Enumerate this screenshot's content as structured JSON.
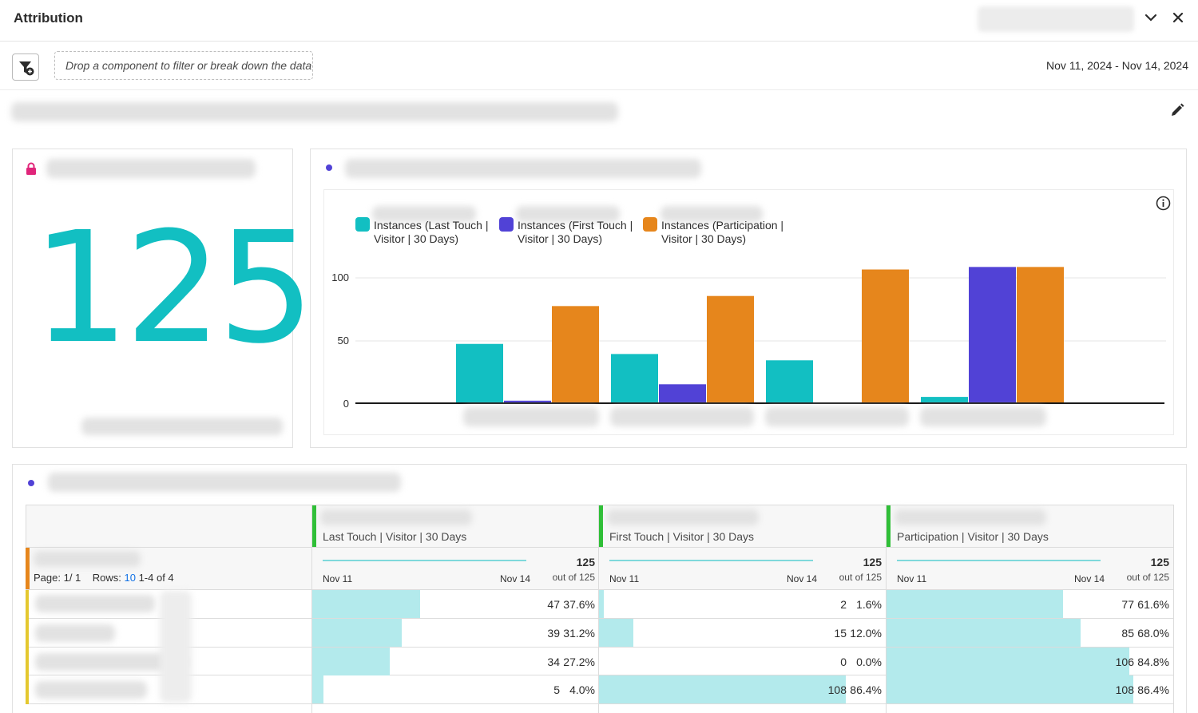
{
  "header": {
    "title": "Attribution"
  },
  "filterbar": {
    "drop_placeholder": "Drop a component to filter or break down the data",
    "date_range": "Nov 11, 2024 - Nov 14, 2024"
  },
  "summary": {
    "value": "125"
  },
  "chart_data": {
    "type": "bar",
    "series": [
      {
        "name": "Instances (Last Touch | Visitor | 30 Days)",
        "values": [
          47,
          39,
          34,
          5
        ],
        "color": "#12bfc2"
      },
      {
        "name": "Instances (First Touch | Visitor | 30 Days)",
        "values": [
          2,
          15,
          0,
          108
        ],
        "color": "#5142d6"
      },
      {
        "name": "Instances (Participation | Visitor | 30 Days)",
        "values": [
          77,
          85,
          106,
          108
        ],
        "color": "#e6861c"
      }
    ],
    "legend_lines": [
      [
        "Instances (Last Touch |",
        "Visitor | 30 Days)"
      ],
      [
        "Instances (First Touch |",
        "Visitor | 30 Days)"
      ],
      [
        "Instances (Participation |",
        "Visitor | 30 Days)"
      ]
    ],
    "yticks": [
      "100",
      "50",
      "0"
    ],
    "ylim": [
      0,
      100
    ],
    "grid": true,
    "legend_placement": "top-left"
  },
  "table": {
    "page_label": "Page: 1/ 1",
    "rows_label": "Rows:",
    "rows_value": "10",
    "range_label": "1-4 of 4",
    "columns": [
      {
        "title": "Last Touch | Visitor | 30 Days",
        "date_start": "Nov 11",
        "date_end": "Nov 14",
        "total": "125",
        "out_of": "out of 125"
      },
      {
        "title": "First Touch | Visitor | 30 Days",
        "date_start": "Nov 11",
        "date_end": "Nov 14",
        "total": "125",
        "out_of": "out of 125"
      },
      {
        "title": "Participation | Visitor | 30 Days",
        "date_start": "Nov 11",
        "date_end": "Nov 14",
        "total": "125",
        "out_of": "out of 125"
      }
    ],
    "rows": [
      {
        "cells": [
          {
            "value": "47",
            "pct": "37.6%",
            "share": 0.376
          },
          {
            "value": "2",
            "pct": "1.6%",
            "share": 0.016
          },
          {
            "value": "77",
            "pct": "61.6%",
            "share": 0.616
          }
        ]
      },
      {
        "cells": [
          {
            "value": "39",
            "pct": "31.2%",
            "share": 0.312
          },
          {
            "value": "15",
            "pct": "12.0%",
            "share": 0.12
          },
          {
            "value": "85",
            "pct": "68.0%",
            "share": 0.68
          }
        ]
      },
      {
        "cells": [
          {
            "value": "34",
            "pct": "27.2%",
            "share": 0.272
          },
          {
            "value": "0",
            "pct": "0.0%",
            "share": 0.0
          },
          {
            "value": "106",
            "pct": "84.8%",
            "share": 0.848
          }
        ]
      },
      {
        "cells": [
          {
            "value": "5",
            "pct": "4.0%",
            "share": 0.04
          },
          {
            "value": "108",
            "pct": "86.4%",
            "share": 0.864
          },
          {
            "value": "108",
            "pct": "86.4%",
            "share": 0.864
          }
        ]
      }
    ]
  },
  "icons": {
    "collapse": "chevron-down-icon",
    "close": "close-icon",
    "filter": "filter-add-icon",
    "edit": "pencil-icon",
    "lock": "lock-icon",
    "info": "info-icon"
  },
  "colors": {
    "accent": "#12bfc2",
    "purple": "#5142d6",
    "orange": "#e6861c",
    "lock": "#e0257a",
    "link": "#1473e6"
  }
}
